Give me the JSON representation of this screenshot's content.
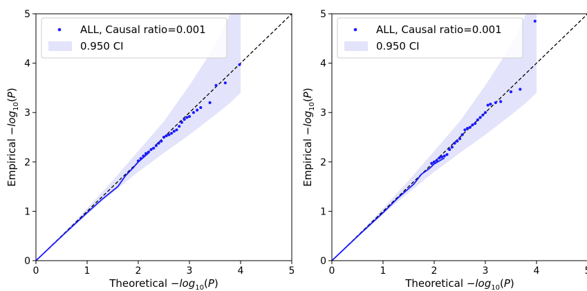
{
  "chart_data": [
    {
      "type": "scatter",
      "xlim": [
        0,
        5
      ],
      "ylim": [
        0,
        5
      ],
      "xticks": [
        "0",
        "1",
        "2",
        "3",
        "4",
        "5"
      ],
      "yticks": [
        "0",
        "1",
        "2",
        "3",
        "4",
        "5"
      ],
      "xlabel": {
        "prefix": "Theoretical ",
        "func": "−log",
        "sub": "10",
        "suffix": "(P)"
      },
      "ylabel": {
        "prefix": "Empirical ",
        "func": "−log",
        "sub": "10",
        "suffix": "(P)"
      },
      "legend": {
        "position": "top-left",
        "entries": [
          "ALL, Causal ratio=0.001",
          "0.950 CI"
        ]
      },
      "grid": false,
      "colors": {
        "points": "#1a1aff",
        "ci": "#e3e3fb",
        "diagonal": "#000000"
      },
      "ci": {
        "x": [
          0.0,
          0.5,
          1.0,
          1.5,
          2.0,
          2.5,
          3.0,
          3.5,
          3.8,
          4.0
        ],
        "lower": [
          0.0,
          0.48,
          0.94,
          1.38,
          1.8,
          2.18,
          2.55,
          2.95,
          3.2,
          3.4
        ],
        "upper": [
          0.0,
          0.52,
          1.06,
          1.62,
          2.22,
          2.82,
          3.55,
          4.35,
          5.0,
          5.0
        ]
      },
      "line": {
        "x": [
          0.0,
          0.5,
          1.0,
          1.3,
          1.6,
          1.75,
          1.9,
          2.0,
          2.2
        ],
        "y": [
          0.0,
          0.49,
          0.97,
          1.25,
          1.5,
          1.72,
          1.88,
          2.0,
          2.18
        ]
      },
      "points": {
        "x": [
          2.0,
          2.05,
          2.1,
          2.15,
          2.2,
          2.25,
          2.3,
          2.35,
          2.4,
          2.45,
          2.5,
          2.55,
          2.6,
          2.65,
          2.7,
          2.75,
          2.8,
          2.85,
          2.9,
          2.95,
          3.0,
          3.08,
          3.15,
          3.22,
          3.4,
          3.52,
          3.7,
          3.98
        ],
        "y": [
          2.02,
          2.07,
          2.12,
          2.17,
          2.2,
          2.25,
          2.28,
          2.33,
          2.38,
          2.42,
          2.5,
          2.53,
          2.55,
          2.58,
          2.62,
          2.65,
          2.72,
          2.8,
          2.86,
          2.9,
          2.92,
          3.0,
          3.05,
          3.1,
          3.2,
          3.55,
          3.6,
          3.97
        ]
      }
    },
    {
      "type": "scatter",
      "xlim": [
        0,
        5
      ],
      "ylim": [
        0,
        5
      ],
      "xticks": [
        "0",
        "1",
        "2",
        "3",
        "4",
        "5"
      ],
      "yticks": [
        "0",
        "1",
        "2",
        "3",
        "4",
        "5"
      ],
      "xlabel": {
        "prefix": "Theoretical ",
        "func": "−log",
        "sub": "10",
        "suffix": "(P)"
      },
      "ylabel": {
        "prefix": "Empirical ",
        "func": "−log",
        "sub": "10",
        "suffix": "(P)"
      },
      "legend": {
        "position": "top-left",
        "entries": [
          "ALL, Causal ratio=0.001",
          "0.950 CI"
        ]
      },
      "grid": false,
      "colors": {
        "points": "#1a1aff",
        "ci": "#e3e3fb",
        "diagonal": "#000000"
      },
      "ci": {
        "x": [
          0.0,
          0.5,
          1.0,
          1.5,
          2.0,
          2.5,
          3.0,
          3.5,
          3.8,
          4.0
        ],
        "lower": [
          0.0,
          0.48,
          0.94,
          1.38,
          1.8,
          2.18,
          2.55,
          2.95,
          3.2,
          3.4
        ],
        "upper": [
          0.0,
          0.52,
          1.06,
          1.62,
          2.22,
          2.82,
          3.55,
          4.35,
          5.0,
          5.0
        ]
      },
      "line": {
        "x": [
          0.0,
          0.5,
          1.0,
          1.3,
          1.6,
          1.75,
          1.9,
          2.0,
          2.2
        ],
        "y": [
          0.0,
          0.49,
          0.97,
          1.28,
          1.55,
          1.75,
          1.86,
          1.96,
          2.08
        ]
      },
      "points": {
        "x": [
          1.95,
          2.0,
          2.05,
          2.1,
          2.15,
          2.2,
          2.25,
          2.3,
          2.35,
          2.4,
          2.45,
          2.5,
          2.55,
          2.6,
          2.65,
          2.7,
          2.75,
          2.8,
          2.85,
          2.9,
          2.95,
          3.0,
          3.05,
          3.1,
          3.2,
          3.3,
          3.5,
          3.68,
          3.97
        ],
        "y": [
          1.97,
          2.0,
          2.03,
          2.08,
          2.1,
          2.12,
          2.15,
          2.25,
          2.3,
          2.38,
          2.42,
          2.47,
          2.55,
          2.65,
          2.68,
          2.7,
          2.75,
          2.78,
          2.85,
          2.9,
          2.95,
          3.0,
          3.15,
          3.17,
          3.2,
          3.22,
          3.42,
          3.47,
          4.85
        ]
      }
    }
  ]
}
